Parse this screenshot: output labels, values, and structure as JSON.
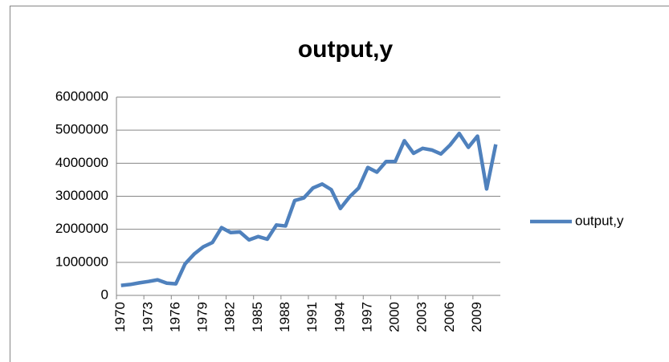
{
  "chart_data": {
    "type": "line",
    "title": "output,y",
    "categories": [
      "1970",
      null,
      null,
      "1973",
      null,
      null,
      "1976",
      null,
      null,
      "1979",
      null,
      null,
      "1982",
      null,
      null,
      "1985",
      null,
      null,
      "1988",
      null,
      null,
      "1991",
      null,
      null,
      "1994",
      null,
      null,
      "1997",
      null,
      null,
      "2000",
      null,
      null,
      "2003",
      null,
      null,
      "2006",
      null,
      null,
      "2009",
      null,
      null
    ],
    "series": [
      {
        "name": "output,y",
        "color": "#4f81bd",
        "values": [
          300000,
          330000,
          380000,
          420000,
          470000,
          370000,
          350000,
          950000,
          1250000,
          1470000,
          1600000,
          2050000,
          1900000,
          1920000,
          1680000,
          1780000,
          1700000,
          2130000,
          2100000,
          2870000,
          2950000,
          3250000,
          3370000,
          3200000,
          2630000,
          2980000,
          3250000,
          3870000,
          3730000,
          4050000,
          4050000,
          4680000,
          4300000,
          4450000,
          4400000,
          4280000,
          4550000,
          4900000,
          4480000,
          4820000,
          3220000,
          4570000
        ]
      }
    ],
    "ylim": [
      0,
      6000000
    ],
    "yticks": [
      0,
      1000000,
      2000000,
      3000000,
      4000000,
      5000000,
      6000000
    ],
    "grid": true,
    "legend": "right"
  }
}
